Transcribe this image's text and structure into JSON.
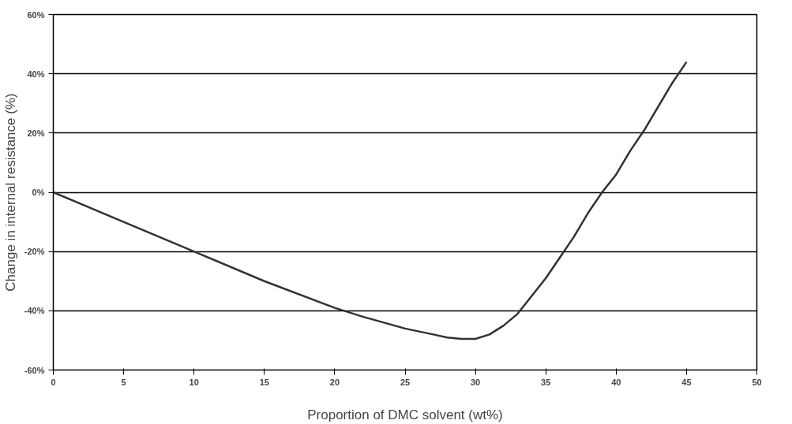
{
  "chart_data": {
    "type": "line",
    "xlabel": "Proportion of DMC solvent (wt%)",
    "ylabel": "Change in internal resistance (%)",
    "x": [
      0,
      5,
      10,
      15,
      20,
      22,
      25,
      27,
      28,
      29,
      30,
      31,
      32,
      33,
      34,
      35,
      36,
      37,
      38,
      39,
      40,
      41,
      42,
      43,
      44,
      45
    ],
    "series": [
      {
        "color": "#333333",
        "values": [
          0,
          -10,
          -20,
          -30,
          -39,
          -42,
          -46,
          -48,
          -49,
          -49.5,
          -49.5,
          -48,
          -45,
          -41,
          -35,
          -29,
          -22,
          -15,
          -7,
          0,
          6,
          14,
          21,
          29,
          37,
          44
        ]
      }
    ],
    "xlim": [
      0,
      50
    ],
    "xticks": [
      0,
      5,
      10,
      15,
      20,
      25,
      30,
      35,
      40,
      45,
      50
    ],
    "ylim": [
      -60,
      60
    ],
    "yticks": [
      {
        "value": -60,
        "label": "-60%"
      },
      {
        "value": -40,
        "label": "-40%"
      },
      {
        "value": -20,
        "label": "-20%"
      },
      {
        "value": 0,
        "label": "0%"
      },
      {
        "value": 20,
        "label": "20%"
      },
      {
        "value": 40,
        "label": "40%"
      },
      {
        "value": 60,
        "label": "60%"
      }
    ],
    "grid": "y",
    "marker": "none",
    "line_style": "solid"
  }
}
